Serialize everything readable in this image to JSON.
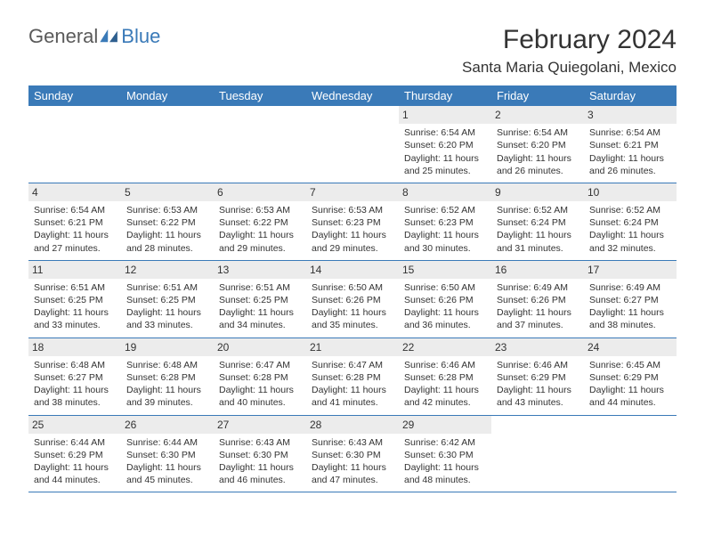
{
  "brand": {
    "part1": "General",
    "part2": "Blue"
  },
  "title": "February 2024",
  "location": "Santa Maria Quiegolani, Mexico",
  "colors": {
    "header_bg": "#3a7ab8",
    "header_fg": "#ffffff",
    "daynum_bg": "#ececec",
    "text": "#333333",
    "border": "#3a7ab8",
    "page_bg": "#ffffff"
  },
  "typography": {
    "title_fontsize": 30,
    "location_fontsize": 17,
    "weekday_fontsize": 13,
    "daynum_fontsize": 12,
    "body_fontsize": 10.5
  },
  "weekdays": [
    "Sunday",
    "Monday",
    "Tuesday",
    "Wednesday",
    "Thursday",
    "Friday",
    "Saturday"
  ],
  "weeks": [
    [
      {
        "empty": true
      },
      {
        "empty": true
      },
      {
        "empty": true
      },
      {
        "empty": true
      },
      {
        "n": "1",
        "sr": "6:54 AM",
        "ss": "6:20 PM",
        "dl": "11 hours and 25 minutes."
      },
      {
        "n": "2",
        "sr": "6:54 AM",
        "ss": "6:20 PM",
        "dl": "11 hours and 26 minutes."
      },
      {
        "n": "3",
        "sr": "6:54 AM",
        "ss": "6:21 PM",
        "dl": "11 hours and 26 minutes."
      }
    ],
    [
      {
        "n": "4",
        "sr": "6:54 AM",
        "ss": "6:21 PM",
        "dl": "11 hours and 27 minutes."
      },
      {
        "n": "5",
        "sr": "6:53 AM",
        "ss": "6:22 PM",
        "dl": "11 hours and 28 minutes."
      },
      {
        "n": "6",
        "sr": "6:53 AM",
        "ss": "6:22 PM",
        "dl": "11 hours and 29 minutes."
      },
      {
        "n": "7",
        "sr": "6:53 AM",
        "ss": "6:23 PM",
        "dl": "11 hours and 29 minutes."
      },
      {
        "n": "8",
        "sr": "6:52 AM",
        "ss": "6:23 PM",
        "dl": "11 hours and 30 minutes."
      },
      {
        "n": "9",
        "sr": "6:52 AM",
        "ss": "6:24 PM",
        "dl": "11 hours and 31 minutes."
      },
      {
        "n": "10",
        "sr": "6:52 AM",
        "ss": "6:24 PM",
        "dl": "11 hours and 32 minutes."
      }
    ],
    [
      {
        "n": "11",
        "sr": "6:51 AM",
        "ss": "6:25 PM",
        "dl": "11 hours and 33 minutes."
      },
      {
        "n": "12",
        "sr": "6:51 AM",
        "ss": "6:25 PM",
        "dl": "11 hours and 33 minutes."
      },
      {
        "n": "13",
        "sr": "6:51 AM",
        "ss": "6:25 PM",
        "dl": "11 hours and 34 minutes."
      },
      {
        "n": "14",
        "sr": "6:50 AM",
        "ss": "6:26 PM",
        "dl": "11 hours and 35 minutes."
      },
      {
        "n": "15",
        "sr": "6:50 AM",
        "ss": "6:26 PM",
        "dl": "11 hours and 36 minutes."
      },
      {
        "n": "16",
        "sr": "6:49 AM",
        "ss": "6:26 PM",
        "dl": "11 hours and 37 minutes."
      },
      {
        "n": "17",
        "sr": "6:49 AM",
        "ss": "6:27 PM",
        "dl": "11 hours and 38 minutes."
      }
    ],
    [
      {
        "n": "18",
        "sr": "6:48 AM",
        "ss": "6:27 PM",
        "dl": "11 hours and 38 minutes."
      },
      {
        "n": "19",
        "sr": "6:48 AM",
        "ss": "6:28 PM",
        "dl": "11 hours and 39 minutes."
      },
      {
        "n": "20",
        "sr": "6:47 AM",
        "ss": "6:28 PM",
        "dl": "11 hours and 40 minutes."
      },
      {
        "n": "21",
        "sr": "6:47 AM",
        "ss": "6:28 PM",
        "dl": "11 hours and 41 minutes."
      },
      {
        "n": "22",
        "sr": "6:46 AM",
        "ss": "6:28 PM",
        "dl": "11 hours and 42 minutes."
      },
      {
        "n": "23",
        "sr": "6:46 AM",
        "ss": "6:29 PM",
        "dl": "11 hours and 43 minutes."
      },
      {
        "n": "24",
        "sr": "6:45 AM",
        "ss": "6:29 PM",
        "dl": "11 hours and 44 minutes."
      }
    ],
    [
      {
        "n": "25",
        "sr": "6:44 AM",
        "ss": "6:29 PM",
        "dl": "11 hours and 44 minutes."
      },
      {
        "n": "26",
        "sr": "6:44 AM",
        "ss": "6:30 PM",
        "dl": "11 hours and 45 minutes."
      },
      {
        "n": "27",
        "sr": "6:43 AM",
        "ss": "6:30 PM",
        "dl": "11 hours and 46 minutes."
      },
      {
        "n": "28",
        "sr": "6:43 AM",
        "ss": "6:30 PM",
        "dl": "11 hours and 47 minutes."
      },
      {
        "n": "29",
        "sr": "6:42 AM",
        "ss": "6:30 PM",
        "dl": "11 hours and 48 minutes."
      },
      {
        "empty": true
      },
      {
        "empty": true
      }
    ]
  ],
  "labels": {
    "sunrise": "Sunrise:",
    "sunset": "Sunset:",
    "daylight": "Daylight:"
  }
}
